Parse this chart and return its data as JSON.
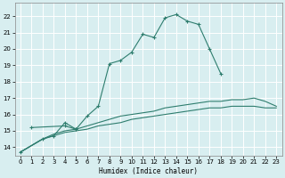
{
  "xlabel": "Humidex (Indice chaleur)",
  "xlim": [
    -0.5,
    23.5
  ],
  "ylim": [
    13.5,
    22.8
  ],
  "background_color": "#d8eef0",
  "grid_color": "#ffffff",
  "line_color": "#2e7d6e",
  "xticks": [
    0,
    1,
    2,
    3,
    4,
    5,
    6,
    7,
    8,
    9,
    10,
    11,
    12,
    13,
    14,
    15,
    16,
    17,
    18,
    19,
    20,
    21,
    22,
    23
  ],
  "yticks": [
    14,
    15,
    16,
    17,
    18,
    19,
    20,
    21,
    22
  ],
  "curve1_x": [
    0,
    2,
    3,
    4,
    5,
    6,
    7,
    8,
    9,
    10,
    11,
    12,
    13,
    14,
    15,
    16,
    17,
    18
  ],
  "curve1_y": [
    13.7,
    14.5,
    14.7,
    15.5,
    15.1,
    15.9,
    16.5,
    19.1,
    19.3,
    19.8,
    20.9,
    20.7,
    21.9,
    22.1,
    21.7,
    21.5,
    20.0,
    18.5
  ],
  "curve2_x": [
    1,
    4,
    5
  ],
  "curve2_y": [
    15.2,
    15.3,
    15.1
  ],
  "curve3_x": [
    0,
    2,
    3,
    4,
    5,
    6,
    7,
    8,
    9,
    10,
    11,
    12,
    13,
    14,
    15,
    16,
    17,
    18,
    19,
    20,
    21,
    22,
    23
  ],
  "curve3_y": [
    13.7,
    14.5,
    14.8,
    15.0,
    15.1,
    15.3,
    15.5,
    15.7,
    15.9,
    16.0,
    16.1,
    16.2,
    16.4,
    16.5,
    16.6,
    16.7,
    16.8,
    16.8,
    16.9,
    16.9,
    17.0,
    16.8,
    16.5
  ],
  "curve4_x": [
    0,
    2,
    3,
    4,
    5,
    6,
    7,
    8,
    9,
    10,
    11,
    12,
    13,
    14,
    15,
    16,
    17,
    18,
    19,
    20,
    21,
    22,
    23
  ],
  "curve4_y": [
    13.7,
    14.5,
    14.7,
    14.9,
    15.0,
    15.1,
    15.3,
    15.4,
    15.5,
    15.7,
    15.8,
    15.9,
    16.0,
    16.1,
    16.2,
    16.3,
    16.4,
    16.4,
    16.5,
    16.5,
    16.5,
    16.4,
    16.4
  ]
}
